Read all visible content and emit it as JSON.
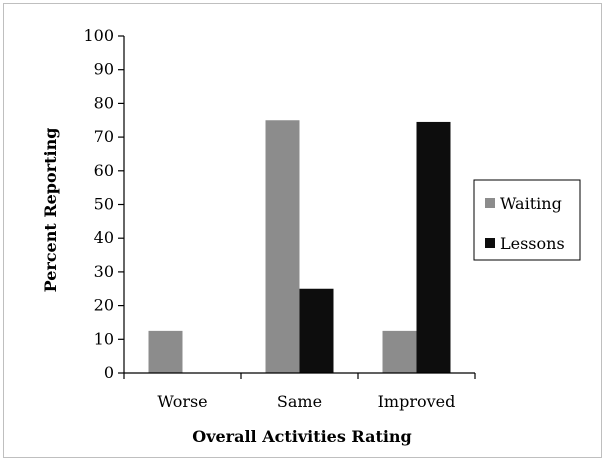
{
  "chart_data": {
    "type": "bar",
    "categories": [
      "Worse",
      "Same",
      "Improved"
    ],
    "series": [
      {
        "name": "Waiting",
        "values": [
          12.5,
          75,
          12.5
        ],
        "color": "#8c8c8c"
      },
      {
        "name": "Lessons",
        "values": [
          0,
          25,
          74.5
        ],
        "color": "#0d0d0d"
      }
    ],
    "xlabel": "Overall Activities Rating",
    "ylabel": "Percent Reporting",
    "ylim": [
      0,
      100
    ],
    "yticks": [
      0,
      10,
      20,
      30,
      40,
      50,
      60,
      70,
      80,
      90,
      100
    ],
    "grid": false,
    "legend": "right"
  }
}
